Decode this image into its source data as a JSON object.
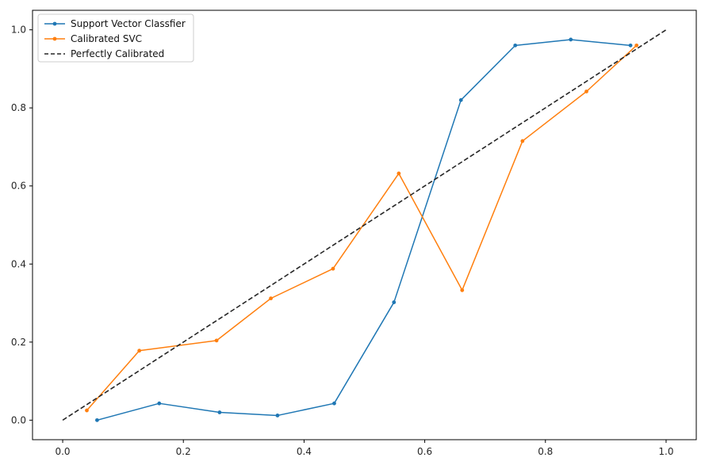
{
  "chart_data": {
    "type": "line",
    "title": "",
    "xlabel": "",
    "ylabel": "",
    "xlim": [
      -0.05,
      1.05
    ],
    "ylim": [
      -0.05,
      1.05
    ],
    "x_ticks": [
      0.0,
      0.2,
      0.4,
      0.6,
      0.8,
      1.0
    ],
    "x_tick_labels": [
      "0.0",
      "0.2",
      "0.4",
      "0.6",
      "0.8",
      "1.0"
    ],
    "y_ticks": [
      0.0,
      0.2,
      0.4,
      0.6,
      0.8,
      1.0
    ],
    "y_tick_labels": [
      "0.0",
      "0.2",
      "0.4",
      "0.6",
      "0.8",
      "1.0"
    ],
    "grid": false,
    "legend_position": "top-left",
    "series": [
      {
        "name": "Support Vector Classfier",
        "color": "#1f77b4",
        "line_style": "solid",
        "marker": "dot",
        "x": [
          0.057,
          0.16,
          0.26,
          0.356,
          0.45,
          0.549,
          0.66,
          0.75,
          0.842,
          0.941
        ],
        "y": [
          0.0,
          0.043,
          0.02,
          0.012,
          0.043,
          0.302,
          0.82,
          0.96,
          0.975,
          0.96
        ]
      },
      {
        "name": "Calibrated SVC",
        "color": "#ff7f0e",
        "line_style": "solid",
        "marker": "dot",
        "x": [
          0.04,
          0.127,
          0.255,
          0.345,
          0.448,
          0.557,
          0.662,
          0.762,
          0.868,
          0.951
        ],
        "y": [
          0.025,
          0.178,
          0.204,
          0.312,
          0.388,
          0.632,
          0.333,
          0.715,
          0.842,
          0.96
        ]
      },
      {
        "name": "Perfectly Calibrated",
        "color": "#262626",
        "line_style": "dashed",
        "marker": "none",
        "x": [
          0.0,
          1.0
        ],
        "y": [
          0.0,
          1.0
        ]
      }
    ]
  }
}
